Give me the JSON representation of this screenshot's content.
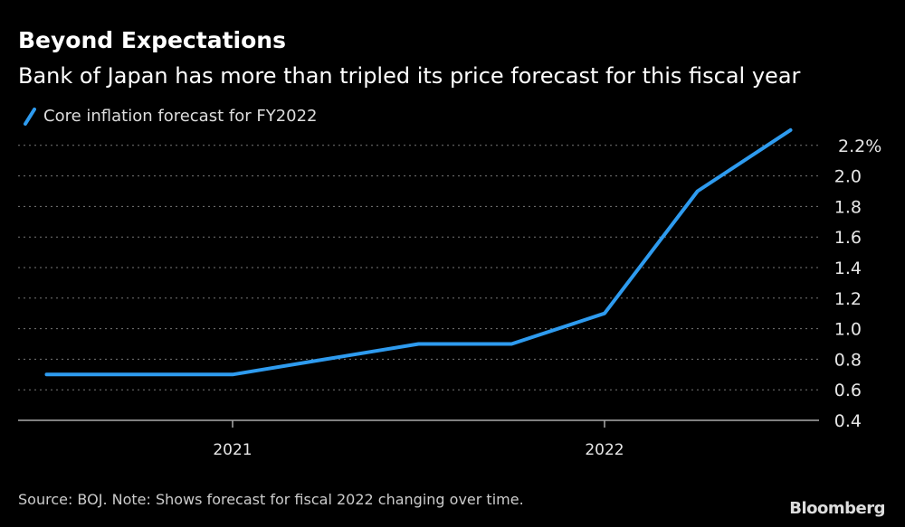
{
  "title": "Beyond Expectations",
  "subtitle": "Bank of Japan has more than tripled its price forecast for this fiscal year",
  "source": "Source: BOJ. Note: Shows forecast for fiscal 2022 changing over time.",
  "logo": "Bloomberg",
  "chart_data": {
    "type": "line",
    "title": "Beyond Expectations",
    "subtitle": "Bank of Japan has more than tripled its price forecast for this fiscal year",
    "legend_placement": "top-left",
    "grid": true,
    "x": [
      "2020-07",
      "2020-10",
      "2021-01",
      "2021-04",
      "2021-07",
      "2021-10",
      "2022-01",
      "2022-04",
      "2022-07"
    ],
    "series": [
      {
        "name": "Core inflation forecast for FY2022",
        "color": "#2e9bef",
        "values": [
          0.7,
          0.7,
          0.7,
          0.8,
          0.9,
          0.9,
          1.1,
          1.9,
          2.3
        ]
      }
    ],
    "xticks": [
      {
        "date": "2021-01",
        "label": "2021"
      },
      {
        "date": "2022-01",
        "label": "2022"
      }
    ],
    "yticks": [
      {
        "value": 0.4,
        "label": "0.4"
      },
      {
        "value": 0.6,
        "label": "0.6"
      },
      {
        "value": 0.8,
        "label": "0.8"
      },
      {
        "value": 1.0,
        "label": "1.0"
      },
      {
        "value": 1.2,
        "label": "1.2"
      },
      {
        "value": 1.4,
        "label": "1.4"
      },
      {
        "value": 1.6,
        "label": "1.6"
      },
      {
        "value": 1.8,
        "label": "1.8"
      },
      {
        "value": 2.0,
        "label": "2.0"
      },
      {
        "value": 2.2,
        "label": "2.2%"
      }
    ],
    "ylim": [
      0.4,
      2.3
    ],
    "y_axis_side": "right"
  }
}
